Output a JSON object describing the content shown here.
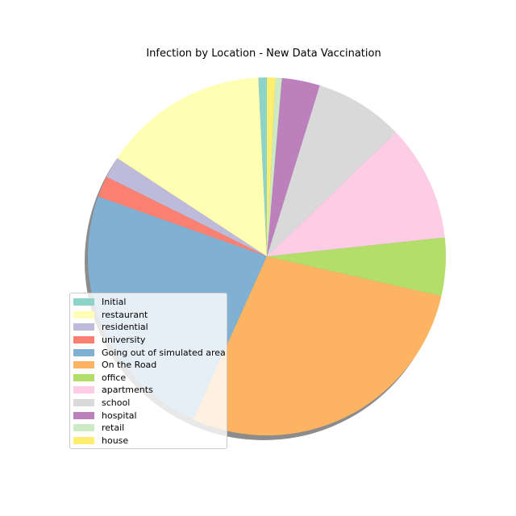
{
  "chart_data": {
    "type": "pie",
    "title": "Infection by Location - New Data Vaccination",
    "shadow": true,
    "start_angle_deg": 90,
    "direction": "counterclockwise",
    "legend_position": "lower-left",
    "categories": [
      "Initial",
      "restaurant",
      "residential",
      "university",
      "Going out of simulated area",
      "On the Road",
      "office",
      "apartments",
      "school",
      "hospital",
      "retail",
      "house"
    ],
    "values": [
      0.8,
      15.7,
      2.0,
      2.0,
      24.8,
      29.5,
      5.5,
      11.0,
      8.4,
      3.6,
      0.6,
      0.8
    ],
    "colors": [
      "#8dd3c7",
      "#ffffb3",
      "#bebada",
      "#fb8072",
      "#80b1d3",
      "#fdb462",
      "#b3de69",
      "#fccde5",
      "#d9d9d9",
      "#bc80bd",
      "#ccebc5",
      "#ffed6f"
    ]
  }
}
